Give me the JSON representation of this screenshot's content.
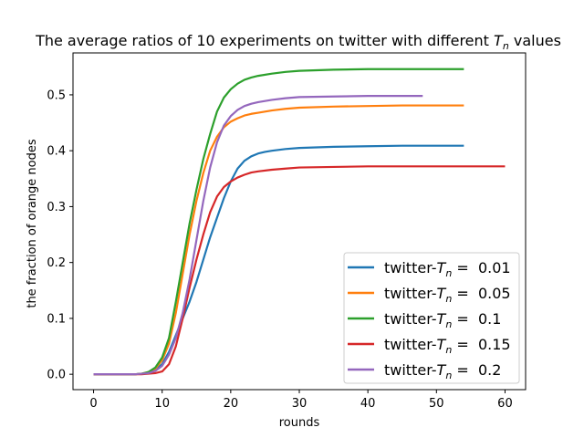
{
  "chart_data": {
    "type": "line",
    "title": "The average ratios of 10 experiments on twitter with different T_n values",
    "title_prefix": "The average ratios of 10 experiments on twitter with different ",
    "title_symbol": "T",
    "title_subscript": "n",
    "title_suffix": " values",
    "xlabel": "rounds",
    "ylabel": "the fraction of orange nodes",
    "xlim": [
      -3,
      63
    ],
    "ylim": [
      -0.0275,
      0.575
    ],
    "xticks": [
      0,
      10,
      20,
      30,
      40,
      50,
      60
    ],
    "yticks": [
      0.0,
      0.1,
      0.2,
      0.3,
      0.4,
      0.5
    ],
    "xtick_labels": [
      "0",
      "10",
      "20",
      "30",
      "40",
      "50",
      "60"
    ],
    "ytick_labels": [
      "0.0",
      "0.1",
      "0.2",
      "0.3",
      "0.4",
      "0.5"
    ],
    "grid": false,
    "legend_position": "lower-right",
    "series": [
      {
        "name": "twitter-T_n = 0.01",
        "legend_prefix": "twitter-",
        "legend_symbol": "T",
        "legend_subscript": "n",
        "legend_suffix": " =  0.01",
        "color": "#1f77b4",
        "x": [
          0,
          2,
          4,
          6,
          7,
          8,
          9,
          10,
          11,
          12,
          13,
          14,
          15,
          16,
          17,
          18,
          19,
          20,
          21,
          22,
          23,
          24,
          25,
          26,
          28,
          30,
          35,
          40,
          45,
          50,
          54
        ],
        "y": [
          0,
          0,
          0,
          0,
          0.001,
          0.003,
          0.008,
          0.018,
          0.04,
          0.07,
          0.1,
          0.13,
          0.165,
          0.205,
          0.245,
          0.28,
          0.315,
          0.345,
          0.368,
          0.382,
          0.39,
          0.395,
          0.398,
          0.4,
          0.403,
          0.405,
          0.407,
          0.408,
          0.409,
          0.409,
          0.409
        ]
      },
      {
        "name": "twitter-T_n = 0.05",
        "legend_prefix": "twitter-",
        "legend_symbol": "T",
        "legend_subscript": "n",
        "legend_suffix": " =  0.05",
        "color": "#ff7f0e",
        "x": [
          0,
          2,
          4,
          6,
          7,
          8,
          9,
          10,
          11,
          12,
          13,
          14,
          15,
          16,
          17,
          18,
          19,
          20,
          21,
          22,
          23,
          24,
          26,
          28,
          30,
          35,
          40,
          45,
          50,
          54
        ],
        "y": [
          0,
          0,
          0,
          0,
          0.001,
          0.004,
          0.01,
          0.025,
          0.055,
          0.11,
          0.18,
          0.25,
          0.31,
          0.36,
          0.4,
          0.425,
          0.442,
          0.452,
          0.458,
          0.463,
          0.466,
          0.468,
          0.472,
          0.475,
          0.477,
          0.479,
          0.48,
          0.481,
          0.481,
          0.481
        ]
      },
      {
        "name": "twitter-T_n = 0.1",
        "legend_prefix": "twitter-",
        "legend_symbol": "T",
        "legend_subscript": "n",
        "legend_suffix": " =  0.1",
        "color": "#2ca02c",
        "x": [
          0,
          2,
          4,
          6,
          7,
          8,
          9,
          10,
          11,
          12,
          13,
          14,
          15,
          16,
          17,
          18,
          19,
          20,
          21,
          22,
          23,
          24,
          26,
          28,
          30,
          35,
          40,
          45,
          50,
          54
        ],
        "y": [
          0,
          0,
          0,
          0,
          0.001,
          0.004,
          0.012,
          0.03,
          0.065,
          0.13,
          0.2,
          0.27,
          0.33,
          0.385,
          0.43,
          0.47,
          0.495,
          0.51,
          0.52,
          0.527,
          0.531,
          0.534,
          0.538,
          0.541,
          0.543,
          0.545,
          0.546,
          0.546,
          0.546,
          0.546
        ]
      },
      {
        "name": "twitter-T_n = 0.15",
        "legend_prefix": "twitter-",
        "legend_symbol": "T",
        "legend_subscript": "n",
        "legend_suffix": " =  0.15",
        "color": "#d62728",
        "x": [
          0,
          2,
          4,
          6,
          7,
          8,
          9,
          10,
          11,
          12,
          13,
          14,
          15,
          16,
          17,
          18,
          19,
          20,
          21,
          22,
          23,
          24,
          26,
          28,
          30,
          35,
          40,
          45,
          50,
          55,
          60
        ],
        "y": [
          0,
          0,
          0,
          0,
          0,
          0.001,
          0.002,
          0.005,
          0.018,
          0.05,
          0.1,
          0.155,
          0.205,
          0.25,
          0.29,
          0.318,
          0.335,
          0.345,
          0.352,
          0.357,
          0.361,
          0.363,
          0.366,
          0.368,
          0.37,
          0.371,
          0.372,
          0.372,
          0.372,
          0.372,
          0.372
        ]
      },
      {
        "name": "twitter-T_n = 0.2",
        "legend_prefix": "twitter-",
        "legend_symbol": "T",
        "legend_subscript": "n",
        "legend_suffix": " =  0.2",
        "color": "#9467bd",
        "x": [
          0,
          2,
          4,
          6,
          7,
          8,
          9,
          10,
          11,
          12,
          13,
          14,
          15,
          16,
          17,
          18,
          19,
          20,
          21,
          22,
          23,
          24,
          26,
          28,
          30,
          35,
          40,
          45,
          48
        ],
        "y": [
          0,
          0,
          0,
          0,
          0.001,
          0.002,
          0.006,
          0.015,
          0.035,
          0.065,
          0.11,
          0.17,
          0.24,
          0.31,
          0.37,
          0.415,
          0.445,
          0.462,
          0.473,
          0.48,
          0.484,
          0.487,
          0.491,
          0.494,
          0.496,
          0.497,
          0.498,
          0.498,
          0.498
        ]
      }
    ]
  }
}
